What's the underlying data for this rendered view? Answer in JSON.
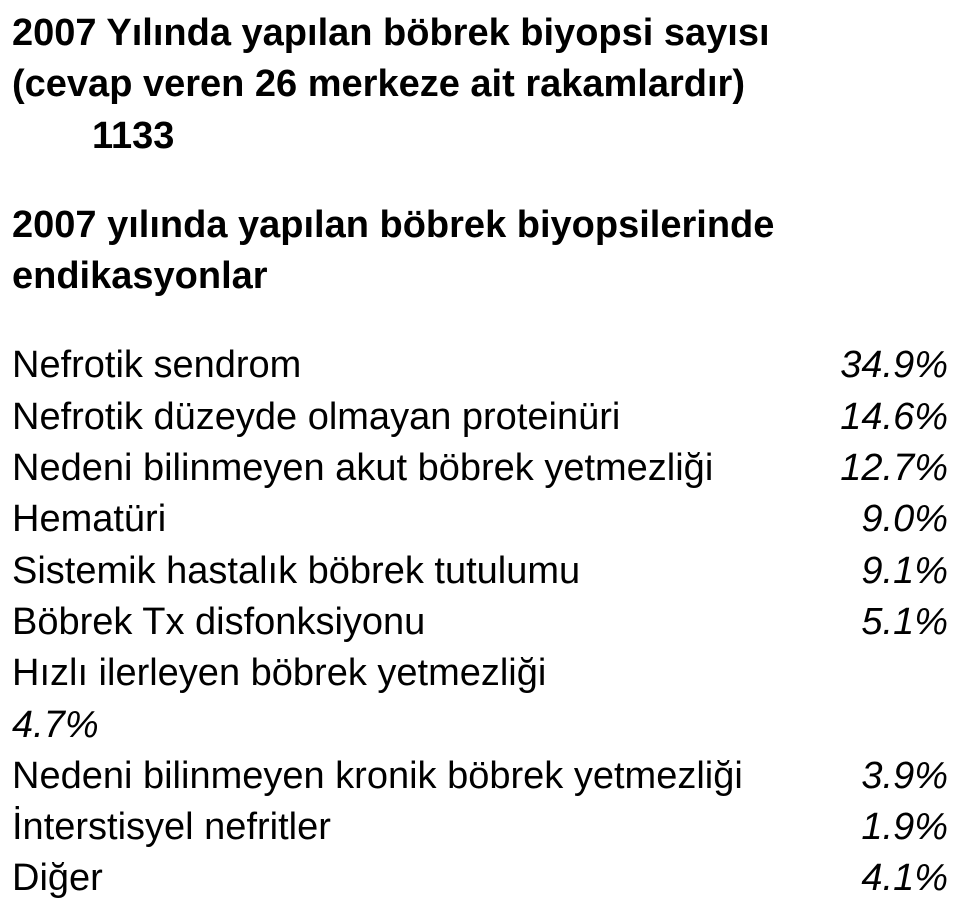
{
  "title": {
    "line1": "2007 Yılında yapılan böbrek biyopsi sayısı",
    "line2": "(cevap veren 26 merkeze ait rakamlardır)",
    "line3": "1133"
  },
  "section_heading": {
    "line1": "2007 yılında yapılan böbrek biyopsilerinde",
    "line2": "endikasyonlar"
  },
  "rows": [
    {
      "label": "Nefrotik sendrom",
      "value": "34.9%"
    },
    {
      "label": "Nefrotik düzeyde olmayan proteinüri",
      "value": "14.6%"
    },
    {
      "label": "Nedeni bilinmeyen akut böbrek yetmezliği",
      "value": "12.7%"
    },
    {
      "label": "Hematüri",
      "value": "9.0%"
    },
    {
      "label": "Sistemik hastalık böbrek tutulumu",
      "value": "9.1%"
    },
    {
      "label": "Böbrek Tx disfonksiyonu",
      "value": "5.1%"
    }
  ],
  "wrapped_row": {
    "label": "Hızlı ilerleyen böbrek yetmezliği",
    "value": "4.7%"
  },
  "rows_after": [
    {
      "label": "Nedeni bilinmeyen kronik böbrek yetmezliği",
      "value": "3.9%"
    },
    {
      "label": "İnterstisyel nefritler",
      "value": "1.9%"
    },
    {
      "label": "Diğer",
      "value": "4.1%"
    }
  ]
}
